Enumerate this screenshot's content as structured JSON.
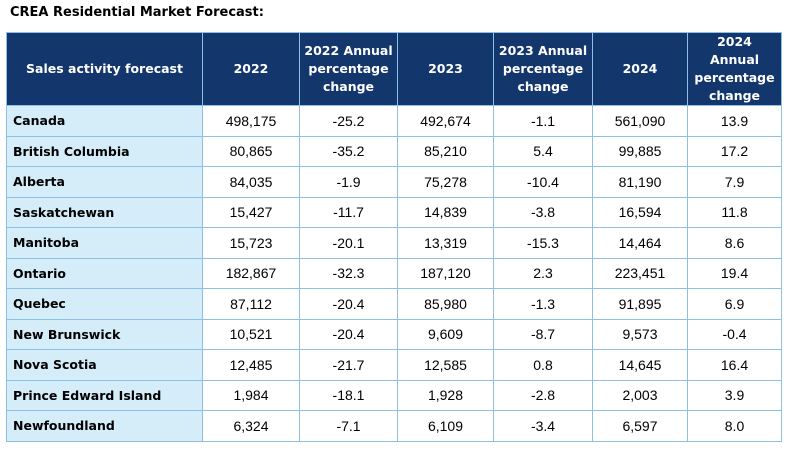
{
  "title": "CREA Residential Market Forecast:",
  "table": {
    "headers": [
      "Sales activity forecast",
      "2022",
      "2022 Annual percentage change",
      "2023",
      "2023 Annual percentage change",
      "2024",
      "2024 Annual percentage change"
    ],
    "rows": [
      [
        "Canada",
        "498,175",
        "-25.2",
        "492,674",
        "-1.1",
        "561,090",
        "13.9"
      ],
      [
        "British Columbia",
        "80,865",
        "-35.2",
        "85,210",
        "5.4",
        "99,885",
        "17.2"
      ],
      [
        "Alberta",
        "84,035",
        "-1.9",
        "75,278",
        "-10.4",
        "81,190",
        "7.9"
      ],
      [
        "Saskatchewan",
        "15,427",
        "-11.7",
        "14,839",
        "-3.8",
        "16,594",
        "11.8"
      ],
      [
        "Manitoba",
        "15,723",
        "-20.1",
        "13,319",
        "-15.3",
        "14,464",
        "8.6"
      ],
      [
        "Ontario",
        "182,867",
        "-32.3",
        "187,120",
        "2.3",
        "223,451",
        "19.4"
      ],
      [
        "Quebec",
        "87,112",
        "-20.4",
        "85,980",
        "-1.3",
        "91,895",
        "6.9"
      ],
      [
        "New Brunswick",
        "10,521",
        "-20.4",
        "9,609",
        "-8.7",
        "9,573",
        "-0.4"
      ],
      [
        "Nova Scotia",
        "12,485",
        "-21.7",
        "12,585",
        "0.8",
        "14,645",
        "16.4"
      ],
      [
        "Prince Edward Island",
        "1,984",
        "-18.1",
        "1,928",
        "-2.8",
        "2,003",
        "3.9"
      ],
      [
        "Newfoundland",
        "6,324",
        "-7.1",
        "6,109",
        "-3.4",
        "6,597",
        "8.0"
      ]
    ]
  },
  "colors": {
    "header_bg": "#13366c",
    "region_bg": "#d5ecf9",
    "border": "#8cc0e6"
  }
}
